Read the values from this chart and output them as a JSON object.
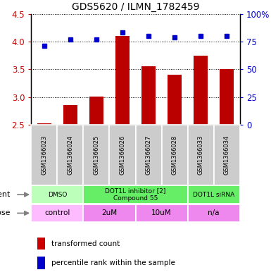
{
  "title": "GDS5620 / ILMN_1782459",
  "samples": [
    "GSM1366023",
    "GSM1366024",
    "GSM1366025",
    "GSM1366026",
    "GSM1366027",
    "GSM1366028",
    "GSM1366033",
    "GSM1366034"
  ],
  "transformed_count": [
    2.52,
    2.86,
    3.01,
    4.1,
    3.55,
    3.4,
    3.75,
    3.5
  ],
  "percentile_rank": [
    71,
    77,
    77,
    83,
    80,
    79,
    80,
    80
  ],
  "ylim": [
    2.5,
    4.5
  ],
  "yticks_left": [
    2.5,
    3.0,
    3.5,
    4.0,
    4.5
  ],
  "yticks_right": [
    0,
    25,
    50,
    75,
    100
  ],
  "bar_color": "#bb0000",
  "dot_color": "#0000cc",
  "agent_groups": [
    {
      "label": "DMSO",
      "start": 0,
      "end": 2,
      "color": "#bbffbb"
    },
    {
      "label": "DOT1L inhibitor [2]\nCompound 55",
      "start": 2,
      "end": 6,
      "color": "#66ee66"
    },
    {
      "label": "DOT1L siRNA",
      "start": 6,
      "end": 8,
      "color": "#66ee66"
    }
  ],
  "dose_groups": [
    {
      "label": "control",
      "start": 0,
      "end": 2,
      "color": "#ffbbff"
    },
    {
      "label": "2uM",
      "start": 2,
      "end": 4,
      "color": "#ee88ee"
    },
    {
      "label": "10uM",
      "start": 4,
      "end": 6,
      "color": "#ee88ee"
    },
    {
      "label": "n/a",
      "start": 6,
      "end": 8,
      "color": "#ee88ee"
    }
  ]
}
